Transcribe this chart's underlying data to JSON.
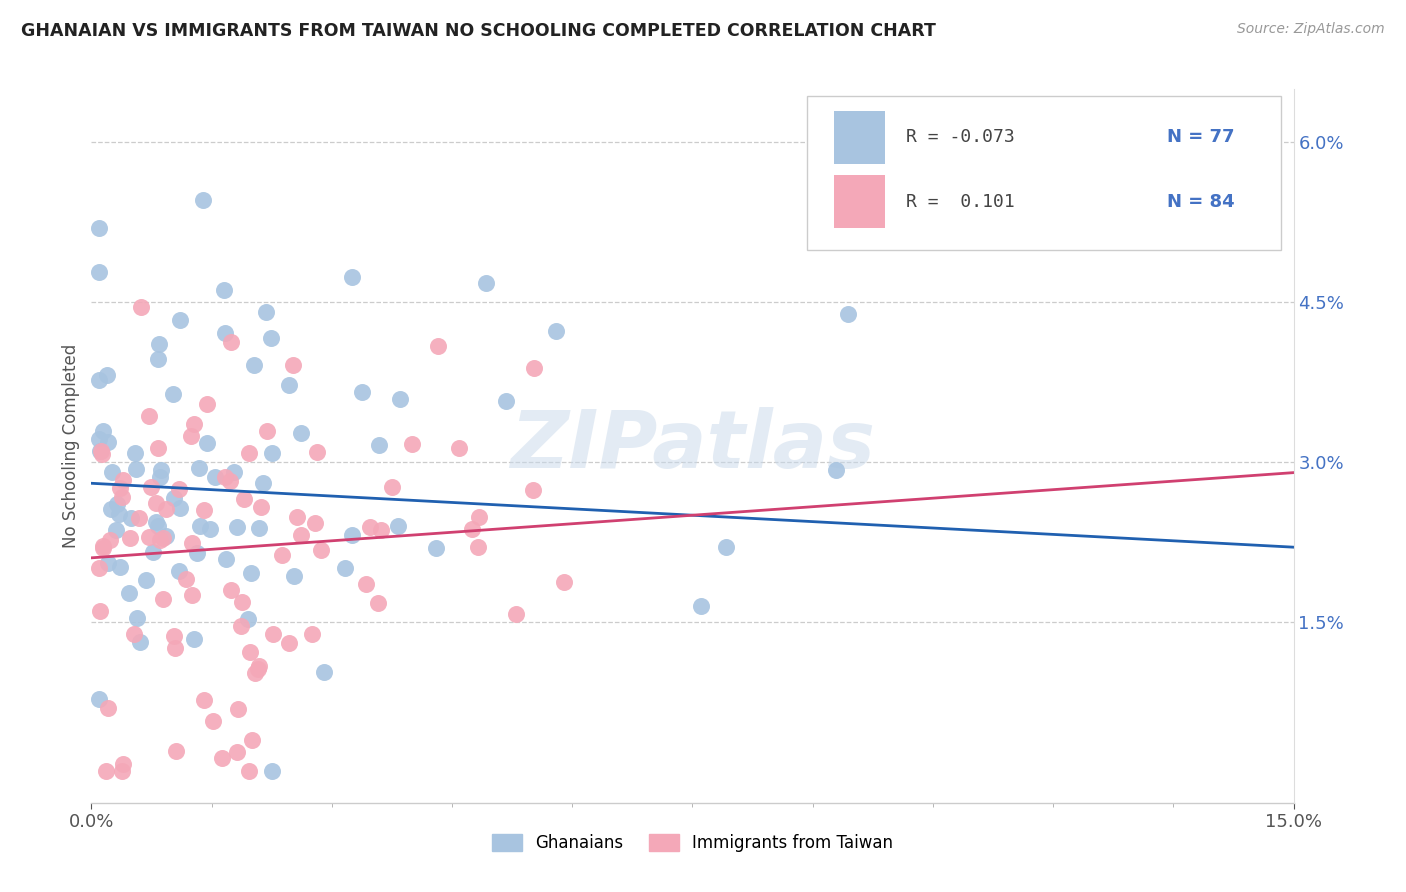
{
  "title": "GHANAIAN VS IMMIGRANTS FROM TAIWAN NO SCHOOLING COMPLETED CORRELATION CHART",
  "source": "Source: ZipAtlas.com",
  "ylabel": "No Schooling Completed",
  "watermark": "ZIPatlas",
  "xlim": [
    0.0,
    0.15
  ],
  "ylim": [
    -0.002,
    0.065
  ],
  "xtick_pos": [
    0.0,
    0.15
  ],
  "xtick_labels": [
    "0.0%",
    "15.0%"
  ],
  "yticks_right": [
    0.015,
    0.03,
    0.045,
    0.06
  ],
  "ytick_labels_right": [
    "1.5%",
    "3.0%",
    "4.5%",
    "6.0%"
  ],
  "ghanaian_color": "#a8c4e0",
  "taiwan_color": "#f4a8b8",
  "line_blue": "#2060b0",
  "line_pink": "#d04070",
  "legend_R_blue": "-0.073",
  "legend_N_blue": "77",
  "legend_R_pink": " 0.101",
  "legend_N_pink": "84",
  "legend_label_blue": "Ghanaians",
  "legend_label_pink": "Immigrants from Taiwan",
  "blue_line_x0": 0.0,
  "blue_line_y0": 0.028,
  "blue_line_x1": 0.15,
  "blue_line_y1": 0.022,
  "pink_line_x0": 0.0,
  "pink_line_y0": 0.021,
  "pink_line_x1": 0.15,
  "pink_line_y1": 0.029
}
